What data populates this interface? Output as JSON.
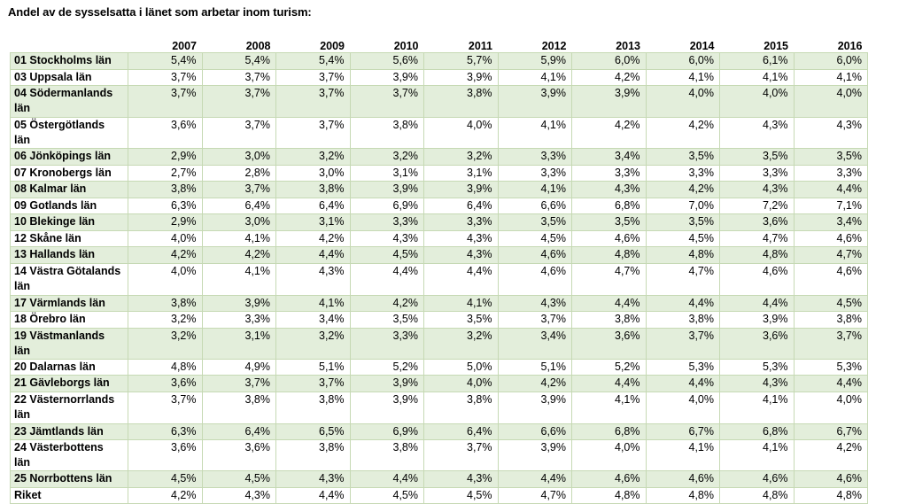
{
  "title": "Andel av de sysselsatta i länet som arbetar inom turism:",
  "table": {
    "headers": [
      "",
      "2007",
      "2008",
      "2009",
      "2010",
      "2011",
      "2012",
      "2013",
      "2014",
      "2015",
      "2016"
    ],
    "rows": [
      {
        "name": "01 Stockholms län",
        "values": [
          "5,4%",
          "5,4%",
          "5,4%",
          "5,6%",
          "5,7%",
          "5,9%",
          "6,0%",
          "6,0%",
          "6,1%",
          "6,0%"
        ]
      },
      {
        "name": "03 Uppsala län",
        "values": [
          "3,7%",
          "3,7%",
          "3,7%",
          "3,9%",
          "3,9%",
          "4,1%",
          "4,2%",
          "4,1%",
          "4,1%",
          "4,1%"
        ]
      },
      {
        "name": "04 Södermanlands län",
        "values": [
          "3,7%",
          "3,7%",
          "3,7%",
          "3,7%",
          "3,8%",
          "3,9%",
          "3,9%",
          "4,0%",
          "4,0%",
          "4,0%"
        ]
      },
      {
        "name": "05 Östergötlands län",
        "values": [
          "3,6%",
          "3,7%",
          "3,7%",
          "3,8%",
          "4,0%",
          "4,1%",
          "4,2%",
          "4,2%",
          "4,3%",
          "4,3%"
        ]
      },
      {
        "name": "06 Jönköpings län",
        "values": [
          "2,9%",
          "3,0%",
          "3,2%",
          "3,2%",
          "3,2%",
          "3,3%",
          "3,4%",
          "3,5%",
          "3,5%",
          "3,5%"
        ]
      },
      {
        "name": "07 Kronobergs län",
        "values": [
          "2,7%",
          "2,8%",
          "3,0%",
          "3,1%",
          "3,1%",
          "3,3%",
          "3,3%",
          "3,3%",
          "3,3%",
          "3,3%"
        ]
      },
      {
        "name": "08 Kalmar län",
        "values": [
          "3,8%",
          "3,7%",
          "3,8%",
          "3,9%",
          "3,9%",
          "4,1%",
          "4,3%",
          "4,2%",
          "4,3%",
          "4,4%"
        ]
      },
      {
        "name": "09 Gotlands län",
        "values": [
          "6,3%",
          "6,4%",
          "6,4%",
          "6,9%",
          "6,4%",
          "6,6%",
          "6,8%",
          "7,0%",
          "7,2%",
          "7,1%"
        ]
      },
      {
        "name": "10 Blekinge län",
        "values": [
          "2,9%",
          "3,0%",
          "3,1%",
          "3,3%",
          "3,3%",
          "3,5%",
          "3,5%",
          "3,5%",
          "3,6%",
          "3,4%"
        ]
      },
      {
        "name": "12 Skåne län",
        "values": [
          "4,0%",
          "4,1%",
          "4,2%",
          "4,3%",
          "4,3%",
          "4,5%",
          "4,6%",
          "4,5%",
          "4,7%",
          "4,6%"
        ]
      },
      {
        "name": "13 Hallands län",
        "values": [
          "4,2%",
          "4,2%",
          "4,4%",
          "4,5%",
          "4,3%",
          "4,6%",
          "4,8%",
          "4,8%",
          "4,8%",
          "4,7%"
        ]
      },
      {
        "name": "14 Västra Götalands län",
        "values": [
          "4,0%",
          "4,1%",
          "4,3%",
          "4,4%",
          "4,4%",
          "4,6%",
          "4,7%",
          "4,7%",
          "4,6%",
          "4,6%"
        ]
      },
      {
        "name": "17 Värmlands län",
        "values": [
          "3,8%",
          "3,9%",
          "4,1%",
          "4,2%",
          "4,1%",
          "4,3%",
          "4,4%",
          "4,4%",
          "4,4%",
          "4,5%"
        ]
      },
      {
        "name": "18 Örebro län",
        "values": [
          "3,2%",
          "3,3%",
          "3,4%",
          "3,5%",
          "3,5%",
          "3,7%",
          "3,8%",
          "3,8%",
          "3,9%",
          "3,8%"
        ]
      },
      {
        "name": "19 Västmanlands län",
        "values": [
          "3,2%",
          "3,1%",
          "3,2%",
          "3,3%",
          "3,2%",
          "3,4%",
          "3,6%",
          "3,7%",
          "3,6%",
          "3,7%"
        ]
      },
      {
        "name": "20 Dalarnas län",
        "values": [
          "4,8%",
          "4,9%",
          "5,1%",
          "5,2%",
          "5,0%",
          "5,1%",
          "5,2%",
          "5,3%",
          "5,3%",
          "5,3%"
        ]
      },
      {
        "name": "21 Gävleborgs län",
        "values": [
          "3,6%",
          "3,7%",
          "3,7%",
          "3,9%",
          "4,0%",
          "4,2%",
          "4,4%",
          "4,4%",
          "4,3%",
          "4,4%"
        ]
      },
      {
        "name": "22 Västernorrlands län",
        "values": [
          "3,7%",
          "3,8%",
          "3,8%",
          "3,9%",
          "3,8%",
          "3,9%",
          "4,1%",
          "4,0%",
          "4,1%",
          "4,0%"
        ]
      },
      {
        "name": "23 Jämtlands län",
        "values": [
          "6,3%",
          "6,4%",
          "6,5%",
          "6,9%",
          "6,4%",
          "6,6%",
          "6,8%",
          "6,7%",
          "6,8%",
          "6,7%"
        ]
      },
      {
        "name": "24 Västerbottens län",
        "values": [
          "3,6%",
          "3,6%",
          "3,8%",
          "3,8%",
          "3,7%",
          "3,9%",
          "4,0%",
          "4,1%",
          "4,1%",
          "4,2%"
        ]
      },
      {
        "name": "25 Norrbottens län",
        "values": [
          "4,5%",
          "4,5%",
          "4,3%",
          "4,4%",
          "4,3%",
          "4,4%",
          "4,6%",
          "4,6%",
          "4,6%",
          "4,6%"
        ]
      },
      {
        "name": "Riket",
        "values": [
          "4,2%",
          "4,3%",
          "4,4%",
          "4,5%",
          "4,5%",
          "4,7%",
          "4,8%",
          "4,8%",
          "4,8%",
          "4,8%"
        ]
      }
    ]
  }
}
